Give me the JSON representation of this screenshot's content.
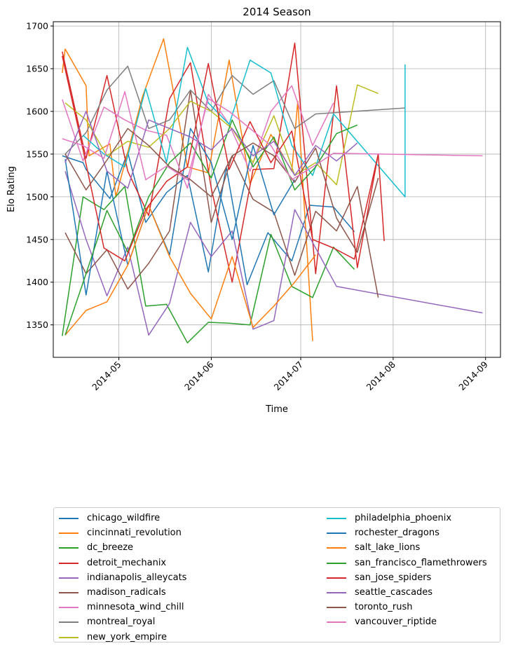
{
  "chart_data": {
    "type": "line",
    "title": "2014 Season",
    "xlabel": "Time",
    "ylabel": "Elo Rating",
    "x_ticks": [
      "2014-05",
      "2014-06",
      "2014-07",
      "2014-08",
      "2014-09"
    ],
    "y_ticks": [
      1350,
      1400,
      1450,
      1500,
      1550,
      1600,
      1650,
      1700
    ],
    "ylim": [
      1312,
      1705
    ],
    "xlim": [
      "2014-04-09",
      "2014-09-06"
    ],
    "grid": true,
    "legend_placement": "below chart, two columns",
    "series": [
      {
        "name": "chicago_wildfire",
        "color": "#1f77b4",
        "x": [
          "2014-04-12",
          "2014-04-19",
          "2014-04-20",
          "2014-04-28",
          "2014-05-04",
          "2014-05-10",
          "2014-05-17",
          "2014-05-24",
          "2014-05-31",
          "2014-06-06",
          "2014-06-13",
          "2014-06-20",
          "2014-06-28",
          "2014-07-04",
          "2014-07-12",
          "2014-07-19"
        ],
        "values": [
          1548,
          1540,
          1532,
          1498,
          1552,
          1470,
          1505,
          1525,
          1412,
          1535,
          1397,
          1458,
          1425,
          1490,
          1488,
          1459
        ]
      },
      {
        "name": "cincinnati_revolution",
        "color": "#ff7f0e",
        "x": [
          "2014-04-12",
          "2014-04-13",
          "2014-04-20",
          "2014-04-21",
          "2014-04-28",
          "2014-04-30",
          "2014-05-09",
          "2014-05-16",
          "2014-05-24",
          "2014-05-31",
          "2014-06-07",
          "2014-06-14",
          "2014-06-21",
          "2014-06-28",
          "2014-06-30",
          "2014-07-05"
        ],
        "values": [
          1645,
          1673,
          1630,
          1548,
          1562,
          1500,
          1618,
          1685,
          1535,
          1528,
          1660,
          1515,
          1573,
          1530,
          1612,
          1331
        ]
      },
      {
        "name": "dc_breeze",
        "color": "#2ca02c",
        "x": [
          "2014-04-12",
          "2014-04-19",
          "2014-04-26",
          "2014-05-03",
          "2014-05-10",
          "2014-05-17",
          "2014-05-24",
          "2014-05-31",
          "2014-06-07",
          "2014-06-14",
          "2014-06-21",
          "2014-06-28",
          "2014-07-05",
          "2014-07-12",
          "2014-07-19"
        ],
        "values": [
          1337,
          1500,
          1485,
          1512,
          1372,
          1374,
          1329,
          1353,
          1352,
          1350,
          1456,
          1395,
          1382,
          1441,
          1415
        ]
      },
      {
        "name": "detroit_mechanix",
        "color": "#d62728",
        "x": [
          "2014-04-12",
          "2014-04-20",
          "2014-04-27",
          "2014-05-04",
          "2014-05-11",
          "2014-05-18",
          "2014-05-25",
          "2014-06-01",
          "2014-06-08",
          "2014-06-15",
          "2014-06-22",
          "2014-06-29",
          "2014-07-06",
          "2014-07-13",
          "2014-07-20",
          "2014-07-27"
        ],
        "values": [
          1670,
          1545,
          1642,
          1530,
          1478,
          1615,
          1657,
          1510,
          1400,
          1532,
          1533,
          1680,
          1410,
          1630,
          1417,
          1550
        ]
      },
      {
        "name": "indianapolis_alleycats",
        "color": "#9467bd",
        "x": [
          "2014-04-13",
          "2014-04-20",
          "2014-04-27",
          "2014-05-04",
          "2014-05-11",
          "2014-05-18",
          "2014-05-25",
          "2014-06-01",
          "2014-06-08",
          "2014-06-15",
          "2014-06-22",
          "2014-06-29",
          "2014-07-06",
          "2014-07-13",
          "2014-08-31"
        ],
        "values": [
          1530,
          1450,
          1384,
          1441,
          1338,
          1375,
          1470,
          1430,
          1460,
          1345,
          1355,
          1485,
          1440,
          1395,
          1364
        ]
      },
      {
        "name": "madison_radicals",
        "color": "#8c564b",
        "x": [
          "2014-04-13",
          "2014-04-20",
          "2014-04-27",
          "2014-05-04",
          "2014-05-11",
          "2014-05-18",
          "2014-05-25",
          "2014-06-01",
          "2014-06-08",
          "2014-06-15",
          "2014-06-22",
          "2014-06-29",
          "2014-07-06",
          "2014-07-13",
          "2014-07-20",
          "2014-07-27"
        ],
        "values": [
          1458,
          1410,
          1438,
          1392,
          1422,
          1460,
          1625,
          1470,
          1548,
          1497,
          1482,
          1408,
          1483,
          1460,
          1512,
          1382
        ]
      },
      {
        "name": "minnesota_wind_chill",
        "color": "#e377c2",
        "x": [
          "2014-04-12",
          "2014-04-19",
          "2014-04-26",
          "2014-05-03",
          "2014-05-10",
          "2014-05-17",
          "2014-05-24",
          "2014-05-31",
          "2014-06-07",
          "2014-06-14",
          "2014-06-21",
          "2014-06-28",
          "2014-07-05",
          "2014-07-12"
        ],
        "values": [
          1614,
          1542,
          1605,
          1590,
          1578,
          1572,
          1510,
          1620,
          1585,
          1530,
          1600,
          1630,
          1560,
          1610
        ]
      },
      {
        "name": "montreal_royal",
        "color": "#7f7f7f",
        "x": [
          "2014-04-13",
          "2014-04-20",
          "2014-04-27",
          "2014-05-04",
          "2014-05-11",
          "2014-05-18",
          "2014-05-25",
          "2014-06-01",
          "2014-06-08",
          "2014-06-15",
          "2014-06-22",
          "2014-06-29",
          "2014-07-06",
          "2014-08-05"
        ],
        "values": [
          1550,
          1575,
          1625,
          1653,
          1580,
          1590,
          1625,
          1600,
          1642,
          1620,
          1636,
          1580,
          1597,
          1604
        ]
      },
      {
        "name": "new_york_empire",
        "color": "#bcbd22",
        "x": [
          "2014-04-13",
          "2014-04-20",
          "2014-04-27",
          "2014-05-04",
          "2014-05-11",
          "2014-05-18",
          "2014-05-25",
          "2014-06-01",
          "2014-06-08",
          "2014-06-15",
          "2014-06-22",
          "2014-06-29",
          "2014-07-06",
          "2014-07-13",
          "2014-07-20",
          "2014-07-27"
        ],
        "values": [
          1610,
          1590,
          1548,
          1565,
          1558,
          1580,
          1612,
          1600,
          1580,
          1540,
          1595,
          1525,
          1540,
          1514,
          1631,
          1621
        ]
      },
      {
        "name": "philadelphia_phoenix",
        "color": "#17becf",
        "x": [
          "2014-04-19",
          "2014-04-26",
          "2014-05-03",
          "2014-05-10",
          "2014-05-17",
          "2014-05-24",
          "2014-05-31",
          "2014-06-07",
          "2014-06-14",
          "2014-06-21",
          "2014-06-28",
          "2014-07-05",
          "2014-07-12",
          "2014-08-05",
          "2014-08-05"
        ],
        "values": [
          1572,
          1550,
          1535,
          1627,
          1540,
          1675,
          1610,
          1585,
          1660,
          1645,
          1560,
          1525,
          1597,
          1500,
          1655
        ]
      },
      {
        "name": "rochester_dragons",
        "color": "#1f77b4",
        "x": [
          "2014-04-13",
          "2014-04-20",
          "2014-04-27",
          "2014-05-04",
          "2014-05-11",
          "2014-05-18",
          "2014-05-25",
          "2014-06-01",
          "2014-06-08",
          "2014-06-15",
          "2014-06-22",
          "2014-06-29"
        ],
        "values": [
          1544,
          1385,
          1530,
          1420,
          1490,
          1432,
          1580,
          1540,
          1450,
          1560,
          1479,
          1520
        ]
      },
      {
        "name": "salt_lake_lions",
        "color": "#ff7f0e",
        "x": [
          "2014-04-13",
          "2014-04-20",
          "2014-04-27",
          "2014-05-04",
          "2014-05-11",
          "2014-05-18",
          "2014-05-25",
          "2014-06-01",
          "2014-06-08",
          "2014-06-15",
          "2014-06-22",
          "2014-06-29",
          "2014-07-06"
        ],
        "values": [
          1338,
          1367,
          1377,
          1420,
          1490,
          1430,
          1387,
          1357,
          1430,
          1347,
          1372,
          1400,
          1432
        ]
      },
      {
        "name": "san_francisco_flamethrowers",
        "color": "#2ca02c",
        "x": [
          "2014-04-13",
          "2014-04-20",
          "2014-04-27",
          "2014-05-04",
          "2014-05-11",
          "2014-05-18",
          "2014-05-25",
          "2014-06-01",
          "2014-06-08",
          "2014-06-15",
          "2014-06-22",
          "2014-06-29",
          "2014-07-06",
          "2014-07-13",
          "2014-07-20"
        ],
        "values": [
          1338,
          1410,
          1484,
          1435,
          1500,
          1540,
          1563,
          1522,
          1590,
          1535,
          1570,
          1508,
          1535,
          1574,
          1584
        ]
      },
      {
        "name": "san_jose_spiders",
        "color": "#d62728",
        "x": [
          "2014-04-12",
          "2014-04-19",
          "2014-04-26",
          "2014-05-03",
          "2014-05-10",
          "2014-05-17",
          "2014-05-24",
          "2014-05-31",
          "2014-06-07",
          "2014-06-14",
          "2014-06-21",
          "2014-06-28",
          "2014-07-05",
          "2014-07-12",
          "2014-07-19",
          "2014-07-27",
          "2014-07-29"
        ],
        "values": [
          1665,
          1555,
          1440,
          1425,
          1485,
          1518,
          1535,
          1656,
          1532,
          1588,
          1540,
          1577,
          1450,
          1440,
          1427,
          1550,
          1448
        ]
      },
      {
        "name": "seattle_cascades",
        "color": "#9467bd",
        "x": [
          "2014-04-13",
          "2014-04-20",
          "2014-04-27",
          "2014-05-04",
          "2014-05-11",
          "2014-05-18",
          "2014-05-25",
          "2014-06-01",
          "2014-06-08",
          "2014-06-15",
          "2014-06-22",
          "2014-06-29",
          "2014-07-06",
          "2014-07-13",
          "2014-07-20"
        ],
        "values": [
          1540,
          1600,
          1530,
          1510,
          1590,
          1580,
          1570,
          1555,
          1580,
          1548,
          1565,
          1525,
          1560,
          1542,
          1563
        ]
      },
      {
        "name": "toronto_rush",
        "color": "#8c564b",
        "x": [
          "2014-04-13",
          "2014-04-20",
          "2014-04-27",
          "2014-05-04",
          "2014-05-11",
          "2014-05-18",
          "2014-05-25",
          "2014-06-01",
          "2014-06-08",
          "2014-06-15",
          "2014-06-22",
          "2014-06-29",
          "2014-07-06",
          "2014-07-13",
          "2014-07-20",
          "2014-07-27"
        ],
        "values": [
          1550,
          1508,
          1543,
          1580,
          1560,
          1535,
          1520,
          1500,
          1548,
          1563,
          1548,
          1517,
          1557,
          1475,
          1435,
          1522
        ]
      },
      {
        "name": "vancouver_riptide",
        "color": "#e377c2",
        "x": [
          "2014-04-12",
          "2014-04-19",
          "2014-04-26",
          "2014-05-03",
          "2014-05-10",
          "2014-05-17",
          "2014-05-24",
          "2014-05-31",
          "2014-06-07",
          "2014-06-14",
          "2014-06-21",
          "2014-06-28",
          "2014-07-05",
          "2014-07-12",
          "2014-08-31"
        ],
        "values": [
          1568,
          1560,
          1545,
          1623,
          1520,
          1536,
          1520,
          1615,
          1600,
          1580,
          1560,
          1520,
          1535,
          1551,
          1548
        ]
      }
    ]
  }
}
